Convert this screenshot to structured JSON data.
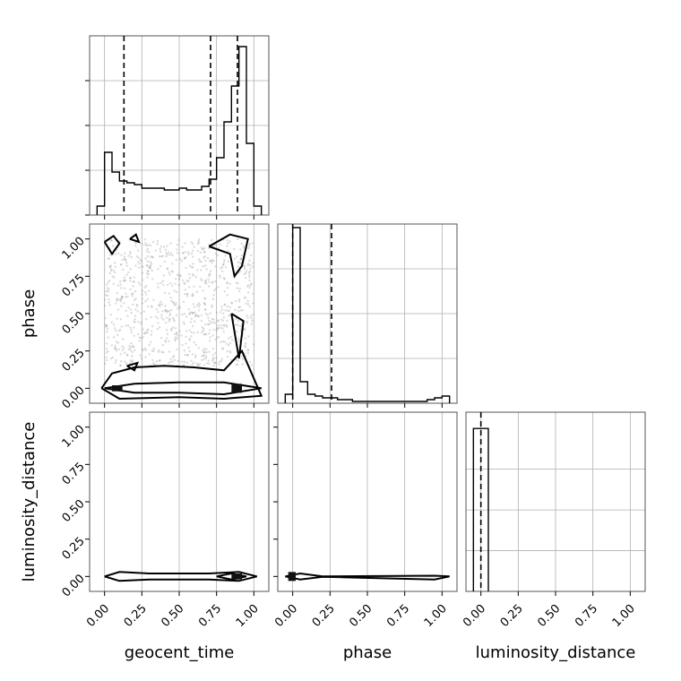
{
  "chart_data": {
    "type": "corner",
    "parameters": [
      "geocent_time",
      "phase",
      "luminosity_distance"
    ],
    "tick_labels": [
      "0.00",
      "0.25",
      "0.50",
      "0.75",
      "1.00"
    ],
    "axis_range": [
      -0.1,
      1.1
    ],
    "ticks": [
      0,
      0.25,
      0.5,
      0.75,
      1.0
    ],
    "grid": true,
    "histograms": [
      {
        "parameter": "geocent_time",
        "bin_edges": [
          -0.05,
          0.0,
          0.05,
          0.1,
          0.15,
          0.2,
          0.25,
          0.3,
          0.35,
          0.4,
          0.45,
          0.5,
          0.55,
          0.6,
          0.65,
          0.7,
          0.75,
          0.8,
          0.85,
          0.9,
          0.95,
          1.0,
          1.05
        ],
        "values": [
          0.05,
          0.35,
          0.24,
          0.19,
          0.18,
          0.17,
          0.15,
          0.15,
          0.15,
          0.14,
          0.14,
          0.15,
          0.14,
          0.14,
          0.16,
          0.2,
          0.32,
          0.52,
          0.72,
          0.94,
          0.4,
          0.05
        ],
        "ymax": 1.0,
        "yticks": [
          0.0,
          0.25,
          0.5,
          0.75
        ],
        "quantiles": [
          0.13,
          0.71,
          0.89
        ]
      },
      {
        "parameter": "phase",
        "bin_edges": [
          -0.05,
          0.0,
          0.05,
          0.1,
          0.15,
          0.2,
          0.25,
          0.3,
          0.35,
          0.4,
          0.45,
          0.5,
          0.55,
          0.6,
          0.65,
          0.7,
          0.75,
          0.8,
          0.85,
          0.9,
          0.95,
          1.0,
          1.05
        ],
        "values": [
          0.05,
          0.98,
          0.12,
          0.05,
          0.04,
          0.03,
          0.03,
          0.02,
          0.02,
          0.01,
          0.01,
          0.01,
          0.01,
          0.01,
          0.01,
          0.01,
          0.01,
          0.01,
          0.01,
          0.02,
          0.03,
          0.04
        ],
        "ymax": 1.0,
        "yticks": [
          0.0,
          0.25,
          0.5,
          0.75
        ],
        "quantiles": [
          0.0,
          0.26
        ]
      },
      {
        "parameter": "luminosity_distance",
        "bin_edges": [
          -0.05,
          0.0,
          0.05
        ],
        "values": [
          1.0,
          1.0
        ],
        "ymax": 1.1,
        "yticks": [
          0.0,
          0.25,
          0.5,
          0.75
        ],
        "quantiles": [
          0.0
        ]
      }
    ],
    "pairs": [
      {
        "x": "geocent_time",
        "y": "phase",
        "scatter_region": {
          "x": [
            0.0,
            1.0
          ],
          "y": [
            0.15,
            1.0
          ]
        },
        "contours": [
          [
            [
              0.0,
              0.0
            ],
            [
              0.2,
              0.03
            ],
            [
              0.5,
              0.04
            ],
            [
              0.8,
              0.04
            ],
            [
              1.05,
              0.0
            ],
            [
              0.8,
              -0.04
            ],
            [
              0.5,
              -0.03
            ],
            [
              0.2,
              -0.03
            ],
            [
              0.0,
              0.0
            ]
          ],
          [
            [
              -0.02,
              0.0
            ],
            [
              0.05,
              0.1
            ],
            [
              0.2,
              0.14
            ],
            [
              0.4,
              0.15
            ],
            [
              0.6,
              0.14
            ],
            [
              0.8,
              0.12
            ],
            [
              0.92,
              0.25
            ],
            [
              1.05,
              -0.05
            ],
            [
              0.8,
              -0.07
            ],
            [
              0.5,
              -0.06
            ],
            [
              0.1,
              -0.07
            ],
            [
              -0.02,
              0.0
            ]
          ],
          [
            [
              0.0,
              0.98
            ],
            [
              0.05,
              0.9
            ],
            [
              0.1,
              0.97
            ],
            [
              0.06,
              1.02
            ],
            [
              0.0,
              0.98
            ]
          ],
          [
            [
              0.17,
              1.0
            ],
            [
              0.23,
              0.98
            ],
            [
              0.21,
              1.03
            ],
            [
              0.17,
              1.0
            ]
          ],
          [
            [
              0.7,
              0.95
            ],
            [
              0.84,
              1.03
            ],
            [
              0.96,
              1.0
            ],
            [
              0.92,
              0.82
            ],
            [
              0.87,
              0.75
            ],
            [
              0.84,
              0.9
            ],
            [
              0.7,
              0.95
            ]
          ],
          [
            [
              0.85,
              0.5
            ],
            [
              0.93,
              0.45
            ],
            [
              0.9,
              0.2
            ],
            [
              0.85,
              0.5
            ]
          ],
          [
            [
              0.15,
              0.15
            ],
            [
              0.22,
              0.17
            ],
            [
              0.2,
              0.12
            ],
            [
              0.15,
              0.15
            ]
          ]
        ],
        "filled_regions": [
          {
            "x": [
              0.85,
              0.92
            ],
            "y": [
              -0.03,
              0.03
            ]
          },
          {
            "x": [
              0.05,
              0.12
            ],
            "y": [
              -0.02,
              0.02
            ]
          }
        ]
      },
      {
        "x": "geocent_time",
        "y": "luminosity_distance",
        "contours": [
          [
            [
              0.0,
              0.0
            ],
            [
              0.1,
              0.03
            ],
            [
              0.3,
              0.02
            ],
            [
              0.7,
              0.02
            ],
            [
              0.9,
              0.03
            ],
            [
              1.02,
              0.0
            ],
            [
              0.9,
              -0.03
            ],
            [
              0.7,
              -0.02
            ],
            [
              0.3,
              -0.02
            ],
            [
              0.1,
              -0.03
            ],
            [
              0.0,
              0.0
            ]
          ],
          [
            [
              0.75,
              0.0
            ],
            [
              0.85,
              0.02
            ],
            [
              0.95,
              0.0
            ],
            [
              0.85,
              -0.02
            ],
            [
              0.75,
              0.0
            ]
          ]
        ],
        "filled_regions": [
          {
            "x": [
              0.85,
              0.92
            ],
            "y": [
              -0.02,
              0.02
            ]
          }
        ]
      },
      {
        "x": "phase",
        "y": "luminosity_distance",
        "contours": [
          [
            [
              -0.05,
              0.0
            ],
            [
              0.05,
              0.02
            ],
            [
              0.2,
              0.0
            ],
            [
              0.95,
              0.005
            ],
            [
              1.05,
              0.0
            ],
            [
              0.95,
              -0.02
            ],
            [
              0.2,
              -0.003
            ],
            [
              0.05,
              -0.02
            ],
            [
              -0.05,
              0.0
            ]
          ]
        ],
        "filled_regions": [
          {
            "x": [
              -0.03,
              0.02
            ],
            "y": [
              -0.03,
              0.03
            ]
          }
        ]
      }
    ]
  }
}
